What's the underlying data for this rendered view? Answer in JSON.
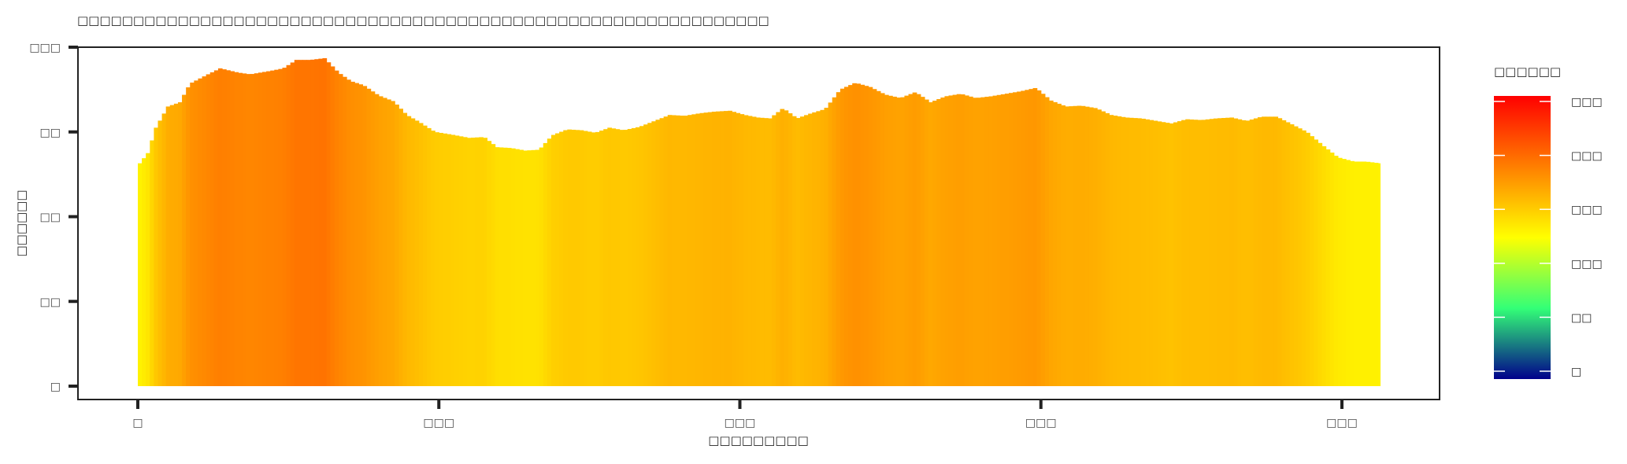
{
  "chart_data": {
    "type": "bar",
    "title": "□□□□□□□□□□□□□□□□□□□□□□□□□□□□□□□□□□□□□□□□□□□□□□□□□□□□□□□□□□□□□□",
    "xlabel": "□□□□□□□□□",
    "ylabel": "□□□□□□",
    "ylim": [
      0,
      400
    ],
    "xlim": [
      0,
      1295
    ],
    "x_ticks": [
      0,
      300,
      600,
      900,
      1200
    ],
    "x_tick_labels": [
      "□",
      "□□□",
      "□□□",
      "□□□",
      "□□□"
    ],
    "y_ticks": [
      0,
      100,
      200,
      300,
      400
    ],
    "y_tick_labels": [
      "□",
      "□□",
      "□□",
      "□□",
      "□□□"
    ],
    "grid": false,
    "legend": {
      "title": "□□□□□□",
      "placement": "right",
      "scale": [
        0,
        500
      ],
      "ticks": [
        0,
        100,
        200,
        300,
        400,
        500
      ],
      "tick_labels": [
        "□",
        "□□",
        "□□□",
        "□□□",
        "□□□",
        "□□□"
      ],
      "colors": [
        "#00008b",
        "#33ff77",
        "#ffff00",
        "#ff7f00",
        "#ff0000"
      ]
    },
    "profile": [
      [
        0,
        260
      ],
      [
        10,
        275
      ],
      [
        18,
        305
      ],
      [
        30,
        330
      ],
      [
        42,
        335
      ],
      [
        52,
        357
      ],
      [
        70,
        368
      ],
      [
        82,
        375
      ],
      [
        100,
        370
      ],
      [
        112,
        368
      ],
      [
        132,
        372
      ],
      [
        145,
        375
      ],
      [
        158,
        385
      ],
      [
        172,
        385
      ],
      [
        186,
        387
      ],
      [
        200,
        370
      ],
      [
        212,
        360
      ],
      [
        225,
        355
      ],
      [
        240,
        343
      ],
      [
        255,
        336
      ],
      [
        268,
        320
      ],
      [
        280,
        312
      ],
      [
        296,
        300
      ],
      [
        312,
        297
      ],
      [
        330,
        293
      ],
      [
        345,
        294
      ],
      [
        358,
        282
      ],
      [
        372,
        281
      ],
      [
        386,
        278
      ],
      [
        400,
        279
      ],
      [
        413,
        296
      ],
      [
        428,
        303
      ],
      [
        442,
        302
      ],
      [
        456,
        299
      ],
      [
        470,
        305
      ],
      [
        484,
        302
      ],
      [
        500,
        306
      ],
      [
        515,
        313
      ],
      [
        530,
        320
      ],
      [
        545,
        319
      ],
      [
        560,
        322
      ],
      [
        575,
        324
      ],
      [
        590,
        325
      ],
      [
        605,
        320
      ],
      [
        618,
        317
      ],
      [
        630,
        316
      ],
      [
        643,
        328
      ],
      [
        657,
        316
      ],
      [
        671,
        322
      ],
      [
        685,
        327
      ],
      [
        700,
        350
      ],
      [
        715,
        358
      ],
      [
        730,
        353
      ],
      [
        745,
        344
      ],
      [
        760,
        340
      ],
      [
        775,
        347
      ],
      [
        790,
        335
      ],
      [
        805,
        342
      ],
      [
        820,
        345
      ],
      [
        835,
        340
      ],
      [
        850,
        342
      ],
      [
        865,
        345
      ],
      [
        880,
        348
      ],
      [
        895,
        352
      ],
      [
        910,
        337
      ],
      [
        925,
        330
      ],
      [
        940,
        331
      ],
      [
        955,
        328
      ],
      [
        970,
        320
      ],
      [
        985,
        317
      ],
      [
        1000,
        316
      ],
      [
        1015,
        313
      ],
      [
        1030,
        310
      ],
      [
        1045,
        315
      ],
      [
        1060,
        314
      ],
      [
        1075,
        316
      ],
      [
        1090,
        317
      ],
      [
        1105,
        313
      ],
      [
        1120,
        318
      ],
      [
        1135,
        318
      ],
      [
        1150,
        309
      ],
      [
        1165,
        300
      ],
      [
        1180,
        285
      ],
      [
        1196,
        270
      ],
      [
        1212,
        265
      ],
      [
        1224,
        265
      ],
      [
        1238,
        263
      ]
    ]
  }
}
